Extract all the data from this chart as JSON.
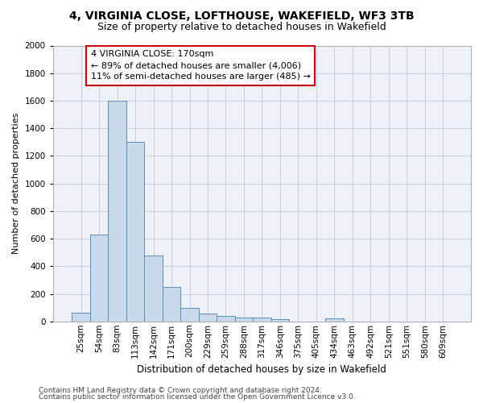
{
  "title1": "4, VIRGINIA CLOSE, LOFTHOUSE, WAKEFIELD, WF3 3TB",
  "title2": "Size of property relative to detached houses in Wakefield",
  "xlabel": "Distribution of detached houses by size in Wakefield",
  "ylabel": "Number of detached properties",
  "bar_color": "#c9d9ea",
  "bar_edge_color": "#5b8db8",
  "categories": [
    "25sqm",
    "54sqm",
    "83sqm",
    "113sqm",
    "142sqm",
    "171sqm",
    "200sqm",
    "229sqm",
    "259sqm",
    "288sqm",
    "317sqm",
    "346sqm",
    "375sqm",
    "405sqm",
    "434sqm",
    "463sqm",
    "492sqm",
    "521sqm",
    "551sqm",
    "580sqm",
    "609sqm"
  ],
  "values": [
    60,
    630,
    1600,
    1300,
    480,
    250,
    100,
    55,
    40,
    30,
    25,
    15,
    0,
    0,
    20,
    0,
    0,
    0,
    0,
    0,
    0
  ],
  "annotation_line1": "4 VIRGINIA CLOSE: 170sqm",
  "annotation_line2": "← 89% of detached houses are smaller (4,006)",
  "annotation_line3": "11% of semi-detached houses are larger (485) →",
  "ylim": [
    0,
    2000
  ],
  "yticks": [
    0,
    200,
    400,
    600,
    800,
    1000,
    1200,
    1400,
    1600,
    1800,
    2000
  ],
  "footer1": "Contains HM Land Registry data © Crown copyright and database right 2024.",
  "footer2": "Contains public sector information licensed under the Open Government Licence v3.0.",
  "bg_color": "#eef2f8",
  "grid_color": "#c5cede",
  "annotation_box_color": "#cc0000",
  "title1_fontsize": 10,
  "title2_fontsize": 9,
  "xlabel_fontsize": 8.5,
  "ylabel_fontsize": 8,
  "tick_fontsize": 7.5,
  "annotation_fontsize": 8,
  "footer_fontsize": 6.5
}
